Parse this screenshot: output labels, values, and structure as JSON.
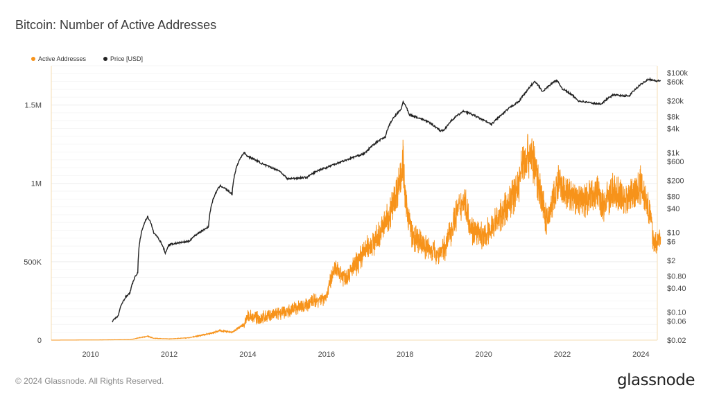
{
  "title": "Bitcoin: Number of Active Addresses",
  "footer": {
    "copyright": "© 2024 Glassnode. All Rights Reserved.",
    "logo": "glassnode"
  },
  "colors": {
    "active": "#f7931a",
    "price": "#222222",
    "grid": "#eeeeee",
    "axis_line": "#f5deb3"
  },
  "chart_data": {
    "type": "line",
    "title": "Bitcoin: Number of Active Addresses",
    "legend_placement": "top-left",
    "grid": true,
    "x_ticks": [
      "2010",
      "2012",
      "2014",
      "2016",
      "2018",
      "2020",
      "2022",
      "2024"
    ],
    "xlim": [
      "2009-01",
      "2024-06"
    ],
    "y_left": {
      "ticks": [
        "0",
        "500K",
        "1M",
        "1.5M"
      ],
      "tick_values": [
        0,
        500000,
        1000000,
        1500000
      ],
      "ylim": [
        0,
        1750000
      ]
    },
    "y_right": {
      "scale": "log",
      "ticks": [
        "$100k",
        "$60k",
        "$20k",
        "$8k",
        "$4k",
        "$1k",
        "$600",
        "$200",
        "$80",
        "$40",
        "$10",
        "$6",
        "$2",
        "$0.80",
        "$0.40",
        "$0.10",
        "$0.06",
        "$0.02"
      ],
      "tick_values": [
        100000,
        60000,
        20000,
        8000,
        4000,
        1000,
        600,
        200,
        80,
        40,
        10,
        6,
        2,
        0.8,
        0.4,
        0.1,
        0.06,
        0.02
      ],
      "ylim": [
        0.02,
        150000
      ]
    },
    "series": [
      {
        "name": "Active Addresses",
        "axis": "left",
        "points": [
          [
            "2009.0",
            0
          ],
          [
            "2010.0",
            1000
          ],
          [
            "2010.5",
            2000
          ],
          [
            "2011.0",
            3000
          ],
          [
            "2011.3",
            18000
          ],
          [
            "2011.45",
            25000
          ],
          [
            "2011.6",
            12000
          ],
          [
            "2012.0",
            8000
          ],
          [
            "2012.5",
            15000
          ],
          [
            "2012.8",
            30000
          ],
          [
            "2013.0",
            40000
          ],
          [
            "2013.3",
            60000
          ],
          [
            "2013.6",
            50000
          ],
          [
            "2013.9",
            100000
          ],
          [
            "2014.0",
            150000
          ],
          [
            "2014.3",
            140000
          ],
          [
            "2014.6",
            160000
          ],
          [
            "2015.0",
            180000
          ],
          [
            "2015.5",
            230000
          ],
          [
            "2016.0",
            280000
          ],
          [
            "2016.2",
            450000
          ],
          [
            "2016.5",
            400000
          ],
          [
            "2016.8",
            500000
          ],
          [
            "2017.0",
            580000
          ],
          [
            "2017.3",
            650000
          ],
          [
            "2017.6",
            800000
          ],
          [
            "2017.85",
            1000000
          ],
          [
            "2017.95",
            1150000
          ],
          [
            "2018.0",
            900000
          ],
          [
            "2018.2",
            650000
          ],
          [
            "2018.5",
            600000
          ],
          [
            "2018.8",
            550000
          ],
          [
            "2019.0",
            580000
          ],
          [
            "2019.3",
            800000
          ],
          [
            "2019.5",
            900000
          ],
          [
            "2019.7",
            700000
          ],
          [
            "2020.0",
            650000
          ],
          [
            "2020.3",
            750000
          ],
          [
            "2020.6",
            850000
          ],
          [
            "2020.9",
            1000000
          ],
          [
            "2021.0",
            1150000
          ],
          [
            "2021.2",
            1200000
          ],
          [
            "2021.4",
            1000000
          ],
          [
            "2021.6",
            750000
          ],
          [
            "2021.9",
            1000000
          ],
          [
            "2022.0",
            950000
          ],
          [
            "2022.3",
            900000
          ],
          [
            "2022.6",
            900000
          ],
          [
            "2022.9",
            950000
          ],
          [
            "2023.0",
            850000
          ],
          [
            "2023.3",
            950000
          ],
          [
            "2023.6",
            900000
          ],
          [
            "2023.9",
            950000
          ],
          [
            "2024.0",
            1000000
          ],
          [
            "2024.2",
            850000
          ],
          [
            "2024.35",
            600000
          ],
          [
            "2024.5",
            650000
          ]
        ]
      },
      {
        "name": "Price [USD]",
        "axis": "right",
        "points": [
          [
            "2010.55",
            0.06
          ],
          [
            "2010.7",
            0.08
          ],
          [
            "2010.9",
            0.25
          ],
          [
            "2011.0",
            0.3
          ],
          [
            "2011.2",
            1
          ],
          [
            "2011.45",
            25
          ],
          [
            "2011.6",
            10
          ],
          [
            "2011.9",
            3
          ],
          [
            "2012.0",
            5
          ],
          [
            "2012.5",
            6
          ],
          [
            "2012.9",
            12
          ],
          [
            "2013.0",
            14
          ],
          [
            "2013.3",
            150
          ],
          [
            "2013.6",
            90
          ],
          [
            "2013.9",
            1000
          ],
          [
            "2014.0",
            800
          ],
          [
            "2014.4",
            500
          ],
          [
            "2014.8",
            350
          ],
          [
            "2015.0",
            220
          ],
          [
            "2015.5",
            240
          ],
          [
            "2015.9",
            400
          ],
          [
            "2016.0",
            420
          ],
          [
            "2016.5",
            650
          ],
          [
            "2016.9",
            900
          ],
          [
            "2017.0",
            1000
          ],
          [
            "2017.5",
            2500
          ],
          [
            "2017.9",
            12000
          ],
          [
            "2017.95",
            19000
          ],
          [
            "2018.1",
            9000
          ],
          [
            "2018.5",
            6500
          ],
          [
            "2018.9",
            3500
          ],
          [
            "2019.0",
            3700
          ],
          [
            "2019.5",
            11000
          ],
          [
            "2019.9",
            7200
          ],
          [
            "2020.2",
            5000
          ],
          [
            "2020.5",
            9500
          ],
          [
            "2020.9",
            19000
          ],
          [
            "2021.1",
            35000
          ],
          [
            "2021.3",
            60000
          ],
          [
            "2021.5",
            33000
          ],
          [
            "2021.85",
            65000
          ],
          [
            "2022.0",
            40000
          ],
          [
            "2022.4",
            20000
          ],
          [
            "2022.9",
            16500
          ],
          [
            "2023.0",
            17000
          ],
          [
            "2023.3",
            28000
          ],
          [
            "2023.7",
            26000
          ],
          [
            "2023.9",
            42000
          ],
          [
            "2024.2",
            70000
          ],
          [
            "2024.4",
            62000
          ],
          [
            "2024.5",
            64000
          ]
        ]
      }
    ]
  }
}
